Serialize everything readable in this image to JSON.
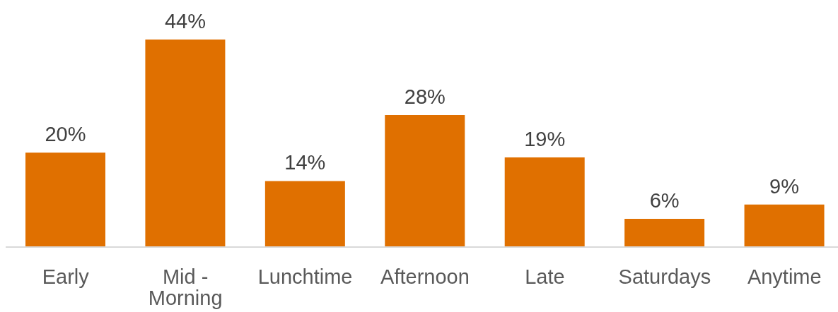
{
  "chart_data": {
    "type": "bar",
    "categories": [
      "Early",
      "Mid - Morning",
      "Lunchtime",
      "Afternoon",
      "Late",
      "Saturdays",
      "Anytime"
    ],
    "values": [
      20,
      44,
      14,
      28,
      19,
      6,
      9
    ],
    "color": "#e07000",
    "value_labels": [
      "20%",
      "44%",
      "14%",
      "28%",
      "19%",
      "6%",
      "9%"
    ]
  }
}
